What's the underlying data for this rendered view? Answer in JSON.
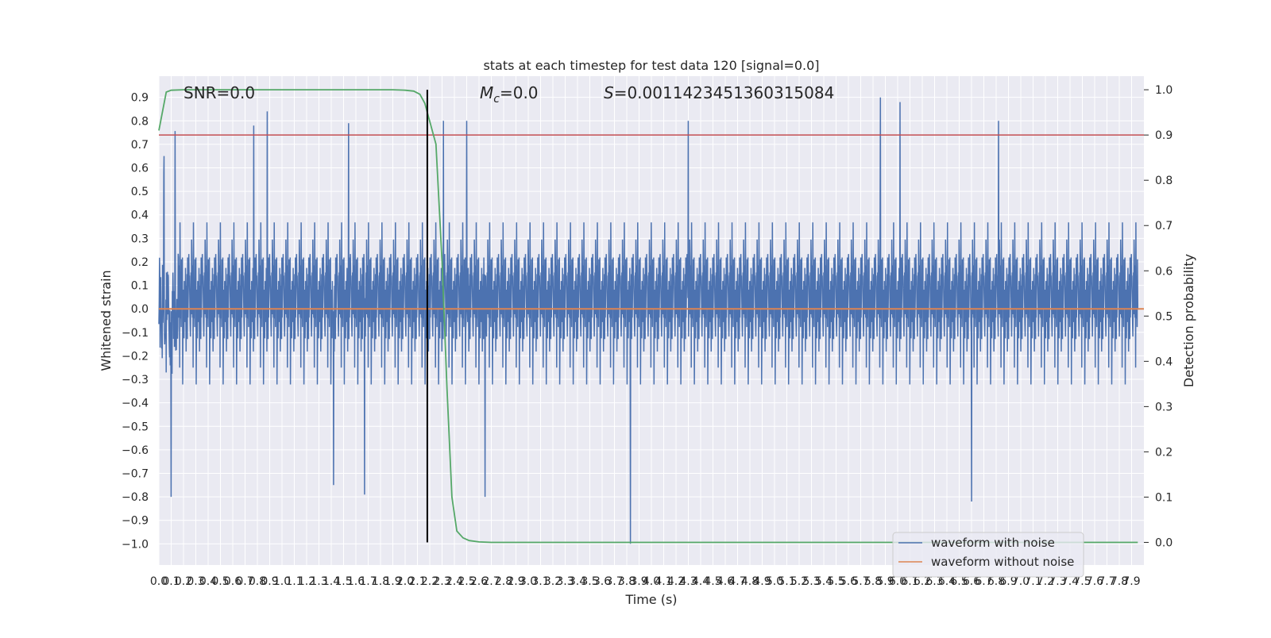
{
  "chart_data": {
    "type": "line",
    "title": "stats at each timestep for test data 120 [signal=0.0]",
    "xlabel": "Time (s)",
    "ylabel": "Whitened strain",
    "y2label": "Detection probability",
    "xlim": [
      0.0,
      8.0
    ],
    "ylim": [
      -1.09,
      0.99
    ],
    "y2lim": [
      -0.05,
      1.03
    ],
    "grid": true,
    "legend_position": "lower-right",
    "x_ticks": [
      "0.0",
      "0.1",
      "0.2",
      "0.3",
      "0.4",
      "0.5",
      "0.6",
      "0.7",
      "0.8",
      "0.9",
      "1.0",
      "1.1",
      "1.2",
      "1.3",
      "1.4",
      "1.5",
      "1.6",
      "1.7",
      "1.8",
      "1.9",
      "2.0",
      "2.1",
      "2.2",
      "2.3",
      "2.4",
      "2.5",
      "2.6",
      "2.7",
      "2.8",
      "2.9",
      "3.0",
      "3.1",
      "3.2",
      "3.3",
      "3.4",
      "3.5",
      "3.6",
      "3.7",
      "3.8",
      "3.9",
      "4.0",
      "4.1",
      "4.2",
      "4.3",
      "4.4",
      "4.5",
      "4.6",
      "4.7",
      "4.8",
      "4.9",
      "5.0",
      "5.1",
      "5.2",
      "5.3",
      "5.4",
      "5.5",
      "5.6",
      "5.7",
      "5.8",
      "5.9",
      "6.0",
      "6.1",
      "6.2",
      "6.3",
      "6.4",
      "6.5",
      "6.6",
      "6.7",
      "6.8",
      "6.9",
      "7.0",
      "7.1",
      "7.2",
      "7.3",
      "7.4",
      "7.5",
      "7.6",
      "7.7",
      "7.8",
      "7.9"
    ],
    "y_ticks": [
      "0.9",
      "0.8",
      "0.7",
      "0.6",
      "0.5",
      "0.4",
      "0.3",
      "0.2",
      "0.1",
      "0.0",
      "−0.1",
      "−0.2",
      "−0.3",
      "−0.4",
      "−0.5",
      "−0.6",
      "−0.7",
      "−0.8",
      "−0.9",
      "−1.0"
    ],
    "y2_ticks": [
      "1.0",
      "0.9",
      "0.8",
      "0.7",
      "0.6",
      "0.5",
      "0.4",
      "0.3",
      "0.2",
      "0.1",
      "0.0"
    ],
    "annotations": {
      "snr": "SNR=0.0",
      "mc_symbol": "M",
      "mc_sub": "c",
      "mc_value": "=0.0",
      "s_symbol": "S",
      "s_value": "=0.0011423451360315084"
    },
    "detection_threshold": 0.9,
    "event_time": 2.18,
    "series": [
      {
        "name": "waveform with noise",
        "color": "#4c72b0",
        "envelope": "noise, |strain| mostly ≤ 0.45, peaks to 0.9 and −1.0 near t=3.83"
      },
      {
        "name": "waveform without noise",
        "color": "#dd8452",
        "x": [
          0.0,
          8.0
        ],
        "y": [
          0.0,
          0.0
        ]
      },
      {
        "name": "",
        "color": "#55a868",
        "axis": "right",
        "x": [
          0.0,
          0.06,
          0.1,
          0.2,
          0.5,
          1.0,
          1.5,
          1.9,
          2.0,
          2.07,
          2.12,
          2.16,
          2.2,
          2.25,
          2.3,
          2.34,
          2.38,
          2.42,
          2.47,
          2.52,
          2.6,
          2.7,
          3.0,
          4.0,
          5.0,
          6.0,
          7.0,
          7.95
        ],
        "y": [
          0.91,
          0.995,
          0.999,
          1.0,
          1.0,
          1.0,
          1.0,
          1.0,
          0.999,
          0.997,
          0.99,
          0.97,
          0.93,
          0.88,
          0.62,
          0.34,
          0.1,
          0.025,
          0.01,
          0.004,
          0.001,
          0.0,
          0.0,
          0.0,
          0.0,
          0.0,
          0.0,
          0.0
        ]
      },
      {
        "name": "",
        "color": "#c44e52",
        "axis": "right",
        "x": [
          0.0,
          8.0
        ],
        "y": [
          0.9,
          0.9
        ]
      },
      {
        "name": "",
        "color": "#000000",
        "vertical_line_at": 2.18
      }
    ],
    "legend": [
      "waveform with noise",
      "waveform without noise"
    ]
  }
}
